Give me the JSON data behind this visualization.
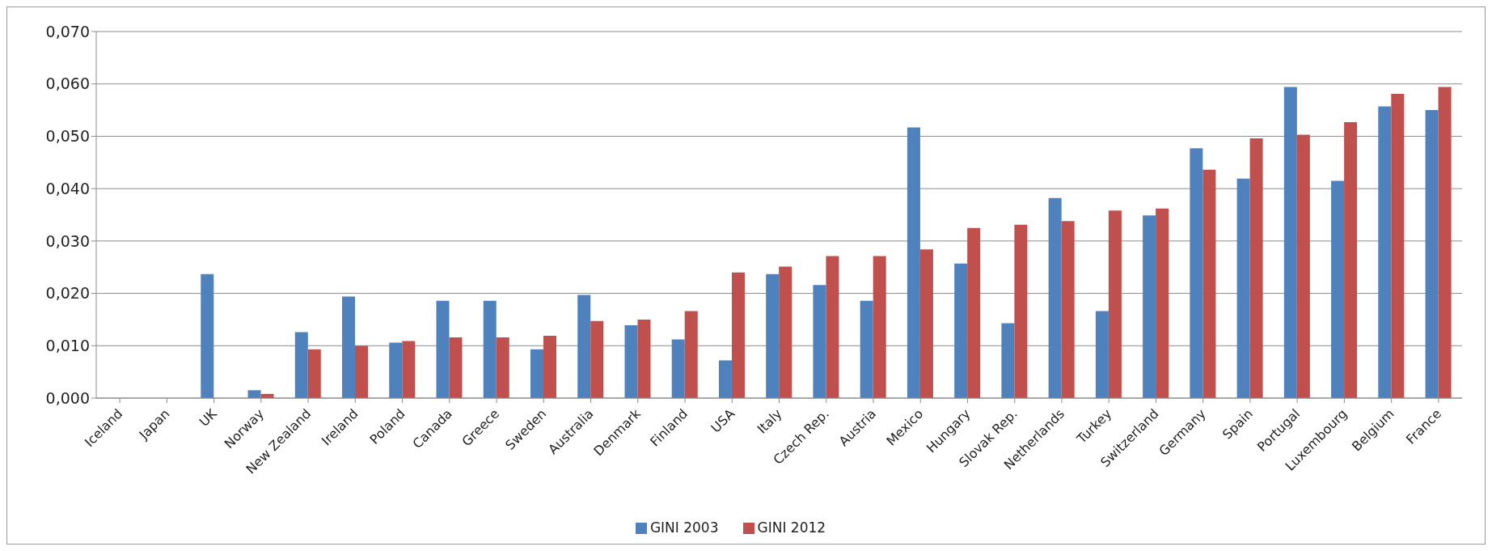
{
  "chart_data": {
    "type": "bar",
    "categories": [
      "Iceland",
      "Japan",
      "UK",
      "Norway",
      "New Zealand",
      "Ireland",
      "Poland",
      "Canada",
      "Greece",
      "Sweden",
      "Australia",
      "Denmark",
      "Finland",
      "USA",
      "Italy",
      "Czech Rep.",
      "Austria",
      "Mexico",
      "Hungary",
      "Slovak Rep.",
      "Netherlands",
      "Turkey",
      "Switzerland",
      "Germany",
      "Spain",
      "Portugal",
      "Luxembourg",
      "Belgium",
      "France"
    ],
    "series": [
      {
        "name": "GINI 2003",
        "color": "#4f81bd",
        "values": [
          null,
          null,
          0.0237,
          0.0015,
          0.0126,
          0.0194,
          0.0106,
          0.0186,
          0.0186,
          0.0093,
          0.0197,
          0.0139,
          0.0112,
          0.0072,
          0.0237,
          0.0216,
          0.0186,
          0.0517,
          0.0257,
          0.0143,
          0.0382,
          0.0166,
          0.0349,
          0.0477,
          0.0419,
          0.0594,
          0.0415,
          0.0557,
          0.055
        ]
      },
      {
        "name": "GINI 2012",
        "color": "#c0504d",
        "values": [
          null,
          null,
          null,
          0.0008,
          0.0093,
          0.01,
          0.0109,
          0.0116,
          0.0116,
          0.0119,
          0.0147,
          0.015,
          0.0166,
          0.024,
          0.0251,
          0.0271,
          0.0271,
          0.0284,
          0.0325,
          0.0331,
          0.0338,
          0.0358,
          0.0362,
          0.0436,
          0.0496,
          0.0503,
          0.0527,
          0.0581,
          0.0594
        ]
      }
    ],
    "ylim": [
      0,
      0.07
    ],
    "yticks": [
      {
        "value": 0,
        "label": "0,000"
      },
      {
        "value": 0.01,
        "label": "0,010"
      },
      {
        "value": 0.02,
        "label": "0,020"
      },
      {
        "value": 0.03,
        "label": "0,030"
      },
      {
        "value": 0.04,
        "label": "0,040"
      },
      {
        "value": 0.05,
        "label": "0,050"
      },
      {
        "value": 0.06,
        "label": "0,060"
      },
      {
        "value": 0.07,
        "label": "0,070"
      }
    ],
    "grid": "y",
    "legend": "bottom"
  }
}
